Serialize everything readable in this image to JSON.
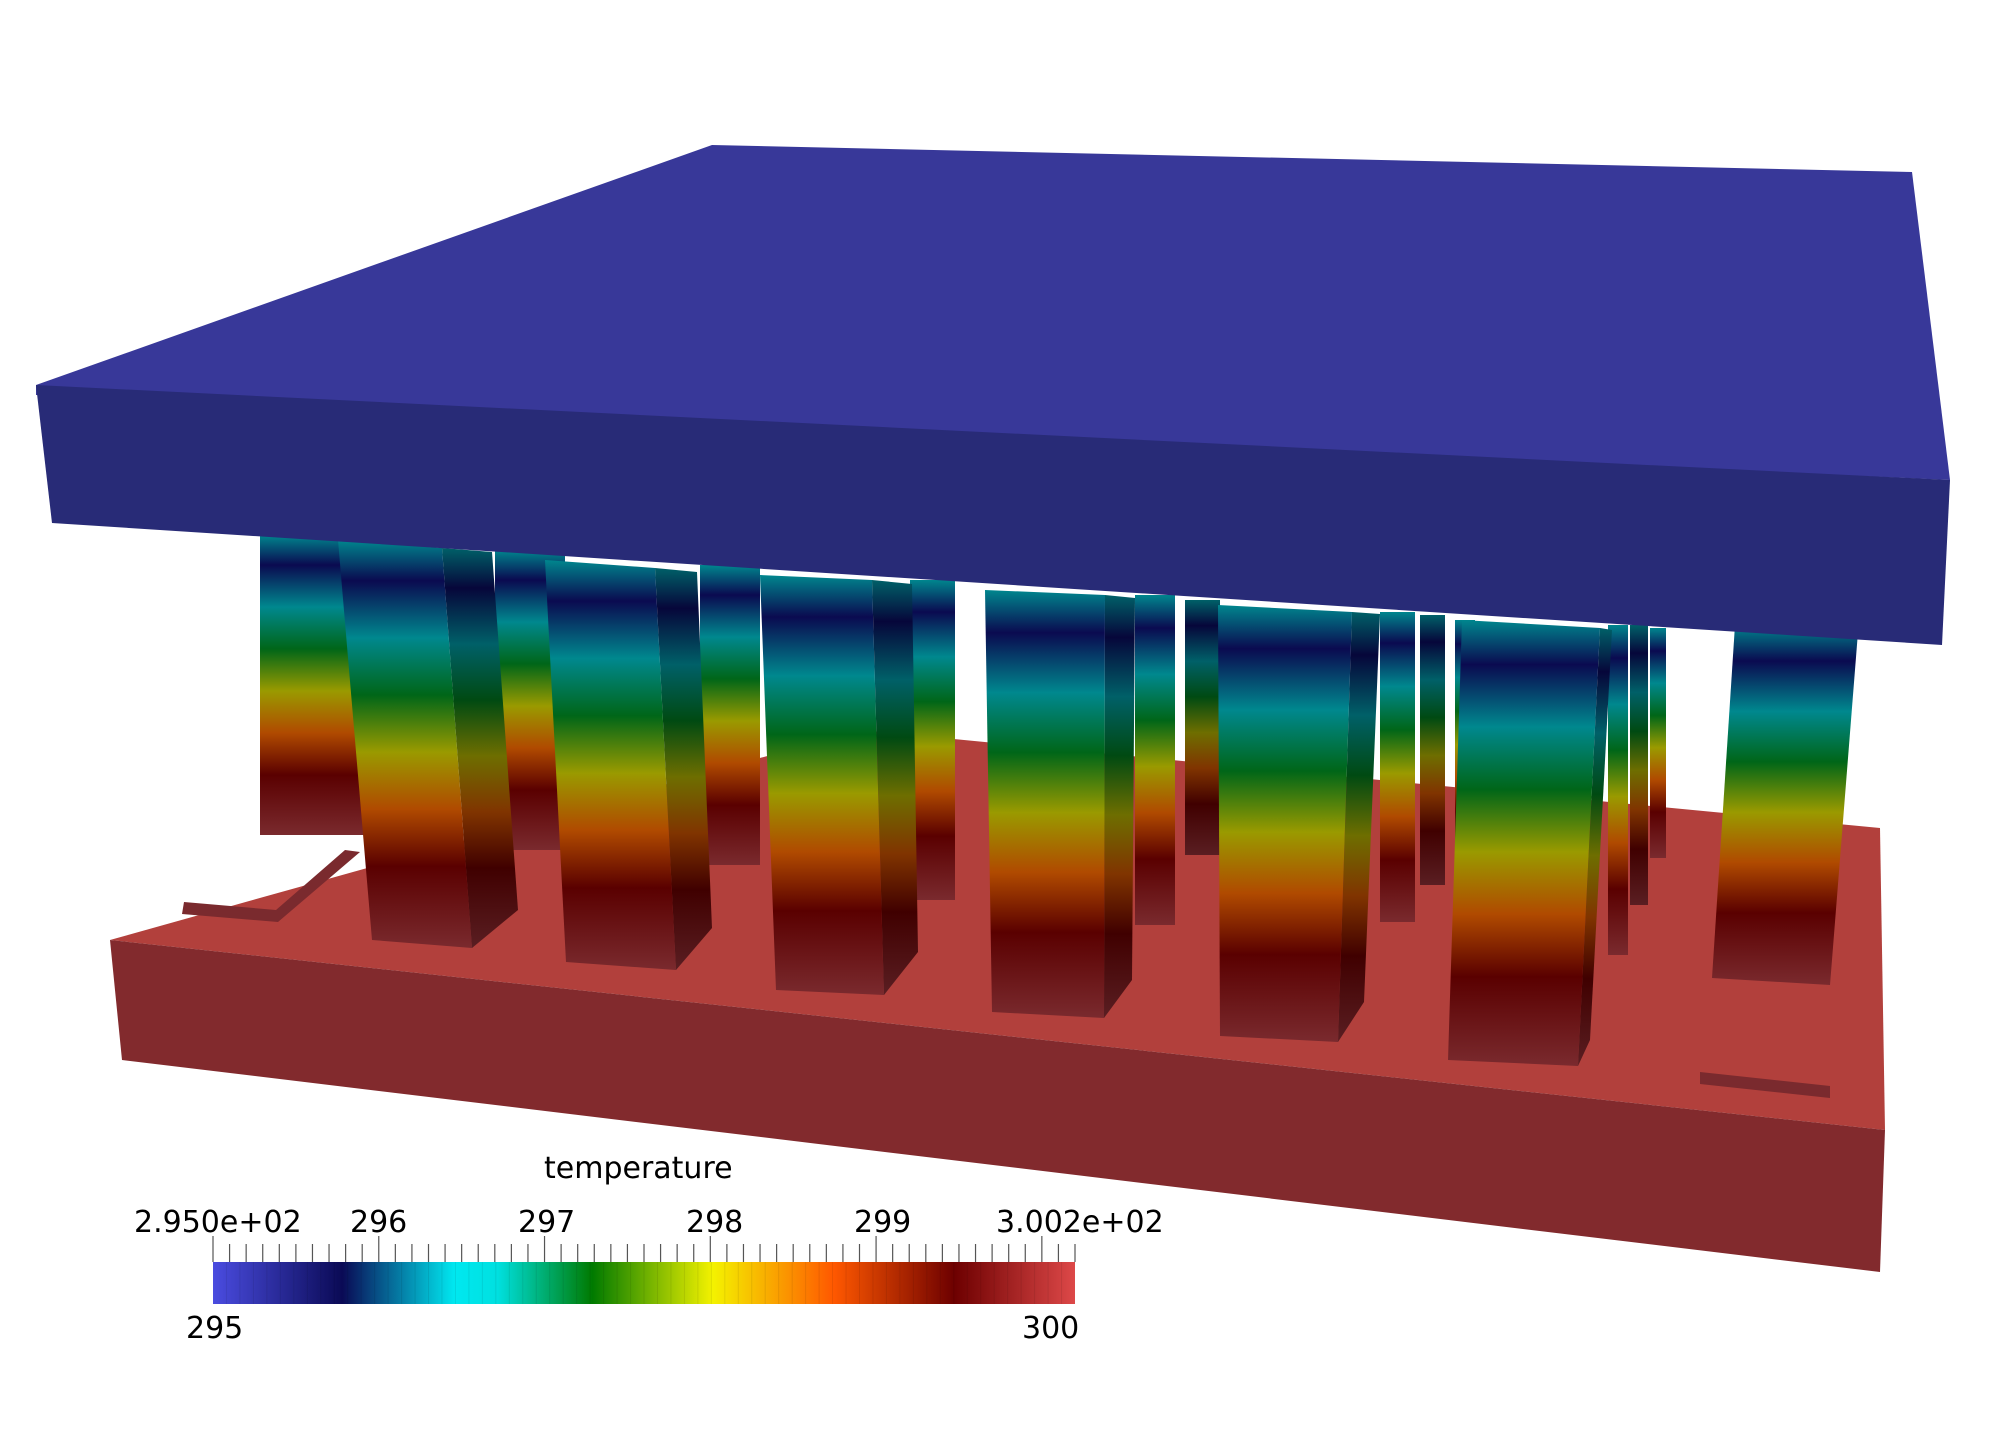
{
  "colorbar": {
    "title": "temperature",
    "range_min": 295,
    "range_max": 300.2,
    "top_ticks": [
      "2.950e+02",
      "296",
      "297",
      "298",
      "299",
      "3.002e+02"
    ],
    "bottom_labels": [
      "295",
      "300"
    ]
  },
  "colors": {
    "top_plate": "#383899",
    "top_plate_front": "#282b77",
    "base_top": "#b2403c",
    "base_front": "#822a2d",
    "colormap_stops": [
      "#4a4ce0",
      "#0a0a55",
      "#00e8f0",
      "#00f2f0",
      "#007a00",
      "#f4f200",
      "#ff5800",
      "#6d0000",
      "#dd4848"
    ]
  }
}
